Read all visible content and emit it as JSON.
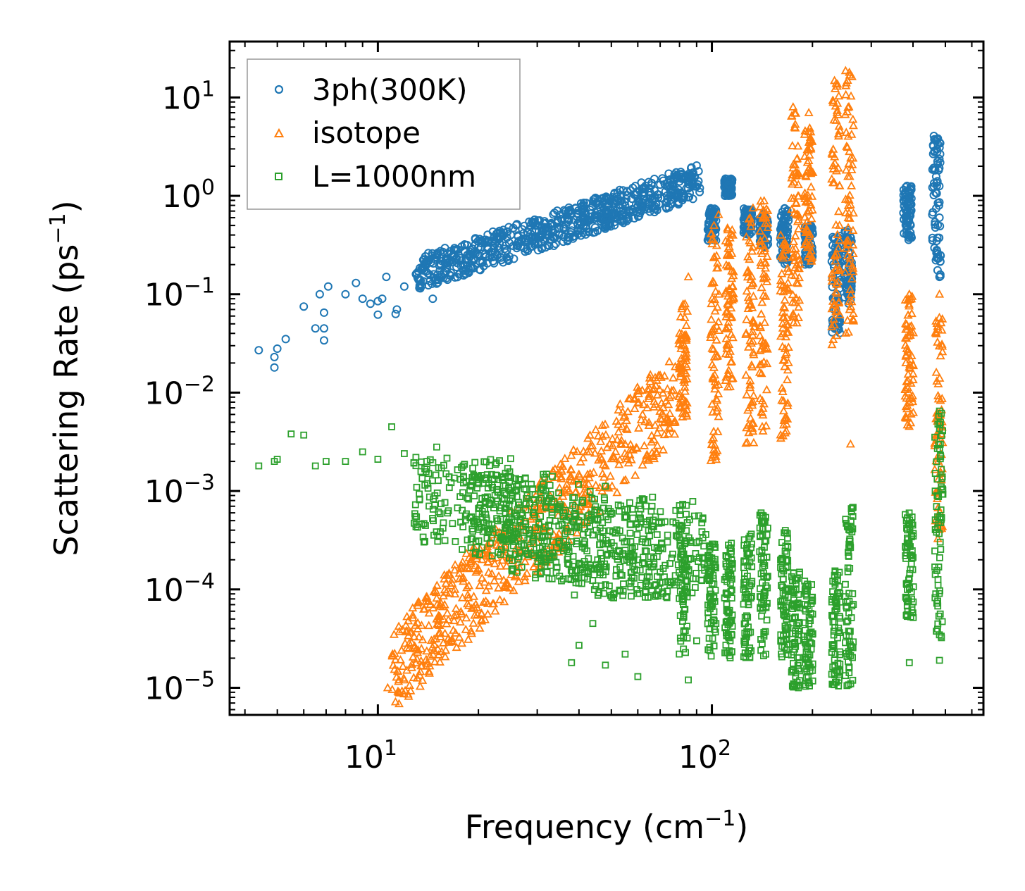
{
  "chart_data": {
    "type": "scatter",
    "x_scale": "log",
    "y_scale": "log",
    "xlabel": "Frequency (cm",
    "xlabel_sup": "−1",
    "xlabel_end": ")",
    "ylabel": "Scattering Rate (ps",
    "ylabel_sup": "−1",
    "ylabel_end": ")",
    "xlim": [
      3.6,
      650
    ],
    "ylim": [
      5.3e-06,
      37
    ],
    "x_ticks": [
      {
        "value": 10,
        "base": "10",
        "exp": "1"
      },
      {
        "value": 100,
        "base": "10",
        "exp": "2"
      }
    ],
    "y_ticks": [
      {
        "value": 1e-05,
        "base": "10",
        "exp": "−5"
      },
      {
        "value": 0.0001,
        "base": "10",
        "exp": "−4"
      },
      {
        "value": 0.001,
        "base": "10",
        "exp": "−3"
      },
      {
        "value": 0.01,
        "base": "10",
        "exp": "−2"
      },
      {
        "value": 0.1,
        "base": "10",
        "exp": "−1"
      },
      {
        "value": 1,
        "base": "10",
        "exp": "0"
      },
      {
        "value": 10,
        "base": "10",
        "exp": "1"
      }
    ],
    "legend_position": "top-left",
    "series": [
      {
        "name": "3ph(300K)",
        "marker": "circle",
        "color": "#1f77b4",
        "points": [
          [
            4.4,
            0.027
          ],
          [
            4.9,
            0.018
          ],
          [
            4.9,
            0.023
          ],
          [
            5.0,
            0.028
          ],
          [
            5.3,
            0.035
          ],
          [
            6.0,
            0.075
          ],
          [
            6.5,
            0.045
          ],
          [
            6.7,
            0.1
          ],
          [
            6.9,
            0.065
          ],
          [
            6.9,
            0.045
          ],
          [
            6.9,
            0.034
          ],
          [
            7.1,
            0.12
          ],
          [
            8.0,
            0.1
          ],
          [
            8.6,
            0.13
          ],
          [
            9.0,
            0.09
          ],
          [
            9.5,
            0.08
          ],
          [
            10.0,
            0.085
          ],
          [
            10.0,
            0.062
          ],
          [
            10.3,
            0.09
          ],
          [
            10.6,
            0.15
          ],
          [
            11.3,
            0.063
          ],
          [
            11.4,
            0.07
          ],
          [
            12.0,
            0.12
          ],
          [
            13.0,
            0.16
          ],
          [
            14.0,
            0.2
          ],
          [
            14.6,
            0.09
          ],
          [
            15.0,
            0.25
          ],
          [
            16.0,
            0.22
          ],
          [
            17.0,
            0.28
          ],
          [
            18.0,
            0.2
          ],
          [
            20.0,
            0.3
          ],
          [
            22.0,
            0.35
          ],
          [
            25.0,
            0.4
          ],
          [
            28.0,
            0.43
          ],
          [
            30.0,
            0.5
          ],
          [
            33.0,
            0.52
          ],
          [
            36.0,
            0.48
          ],
          [
            40.0,
            0.55
          ],
          [
            45.0,
            0.6
          ],
          [
            50.0,
            0.7
          ],
          [
            55.0,
            0.8
          ],
          [
            60.0,
            0.9
          ],
          [
            65.0,
            1.2
          ],
          [
            70.0,
            1.3
          ],
          [
            75.0,
            1.1
          ],
          [
            80.0,
            1.4
          ],
          [
            85.0,
            1.6
          ],
          [
            88.0,
            1.3
          ],
          [
            92.0,
            1.2
          ],
          [
            102.0,
            0.45
          ],
          [
            102.0,
            0.7
          ],
          [
            112.0,
            1.3
          ],
          [
            130.0,
            0.55
          ],
          [
            143.0,
            0.4
          ],
          [
            165.0,
            0.25
          ],
          [
            165.0,
            0.55
          ],
          [
            195.0,
            0.22
          ],
          [
            195.0,
            0.45
          ],
          [
            238.0,
            0.05
          ],
          [
            238.0,
            0.3
          ],
          [
            258.0,
            0.1
          ],
          [
            258.0,
            0.35
          ],
          [
            390.0,
            1.1
          ],
          [
            390.0,
            0.4
          ],
          [
            480.0,
            0.6
          ],
          [
            480.0,
            3.5
          ],
          [
            480.0,
            0.15
          ]
        ],
        "bands": [
          [
            100,
            0.35,
            0.8
          ],
          [
            112,
            1.0,
            1.5
          ],
          [
            128,
            0.4,
            0.75
          ],
          [
            143,
            0.3,
            0.65
          ],
          [
            165,
            0.2,
            0.75
          ],
          [
            195,
            0.2,
            0.5
          ],
          [
            235,
            0.04,
            0.4
          ],
          [
            255,
            0.08,
            0.45
          ],
          [
            385,
            0.35,
            1.3
          ],
          [
            470,
            0.15,
            4.2
          ]
        ]
      },
      {
        "name": "isotope",
        "marker": "triangle",
        "color": "#ff7f0e",
        "points": [
          [
            10.7,
            1e-05
          ],
          [
            12.0,
            1.2e-05
          ],
          [
            13.5,
            2.5e-05
          ],
          [
            15.0,
            5e-05
          ],
          [
            17.0,
            0.0001
          ],
          [
            19.0,
            0.0002
          ],
          [
            21.0,
            0.00025
          ],
          [
            24.0,
            0.0004
          ],
          [
            27.0,
            0.0006
          ],
          [
            30.0,
            0.0007
          ],
          [
            35.0,
            0.0008
          ],
          [
            42.0,
            0.0011
          ],
          [
            48.0,
            0.0018
          ],
          [
            55.0,
            0.003
          ],
          [
            62.0,
            0.006
          ],
          [
            70.0,
            0.015
          ],
          [
            80.0,
            0.04
          ],
          [
            85.0,
            0.15
          ],
          [
            100.0,
            0.003
          ],
          [
            105.0,
            0.1
          ],
          [
            115.0,
            0.45
          ],
          [
            145.0,
            0.6
          ],
          [
            260.0,
            0.003
          ],
          [
            175.0,
            8.0
          ],
          [
            195.0,
            7.0
          ],
          [
            237.0,
            13.0
          ],
          [
            258.0,
            18.0
          ],
          [
            390.0,
            0.1
          ],
          [
            480.0,
            0.1
          ],
          [
            475.0,
            0.0005
          ],
          [
            480.0,
            0.006
          ]
        ],
        "bands": [
          [
            82,
            0.005,
            0.08
          ],
          [
            102,
            0.002,
            0.7
          ],
          [
            113,
            0.01,
            0.5
          ],
          [
            130,
            0.003,
            0.8
          ],
          [
            143,
            0.004,
            0.9
          ],
          [
            165,
            0.003,
            0.4
          ],
          [
            178,
            0.05,
            7.0
          ],
          [
            195,
            0.2,
            5.0
          ],
          [
            235,
            0.03,
            15.0
          ],
          [
            258,
            0.04,
            19.0
          ],
          [
            390,
            0.004,
            0.1
          ],
          [
            478,
            0.0003,
            0.06
          ]
        ]
      },
      {
        "name": "L=1000nm",
        "marker": "square",
        "color": "#2ca02c",
        "points": [
          [
            4.4,
            0.0018
          ],
          [
            4.9,
            0.002
          ],
          [
            5.0,
            0.0021
          ],
          [
            5.5,
            0.0038
          ],
          [
            6.0,
            0.0037
          ],
          [
            6.5,
            0.0018
          ],
          [
            7.0,
            0.002
          ],
          [
            8.0,
            0.002
          ],
          [
            9.0,
            0.0025
          ],
          [
            10.0,
            0.0021
          ],
          [
            11.0,
            0.0045
          ],
          [
            12.0,
            0.0024
          ],
          [
            13.0,
            0.0022
          ],
          [
            14.0,
            0.002
          ],
          [
            15.0,
            0.0028
          ],
          [
            16.0,
            0.0015
          ],
          [
            18.0,
            0.0018
          ],
          [
            20.0,
            0.0014
          ],
          [
            22.0,
            0.0013
          ],
          [
            25.0,
            0.0011
          ],
          [
            28.0,
            0.0009
          ],
          [
            32.0,
            0.0008
          ],
          [
            36.0,
            0.0006
          ],
          [
            40.0,
            0.0005
          ],
          [
            45.0,
            0.0004
          ],
          [
            50.0,
            0.0003
          ],
          [
            55.0,
            0.00025
          ],
          [
            60.0,
            0.0002
          ],
          [
            65.0,
            0.00018
          ],
          [
            70.0,
            0.00015
          ],
          [
            75.0,
            0.00012
          ],
          [
            40.0,
            2.7e-05
          ],
          [
            44.0,
            4.5e-05
          ],
          [
            48.0,
            1.7e-05
          ],
          [
            55.0,
            2.2e-05
          ],
          [
            60.0,
            1.3e-05
          ],
          [
            38.0,
            1.8e-05
          ],
          [
            85.0,
            1.2e-05
          ],
          [
            90.0,
            3e-05
          ],
          [
            145.0,
            2.2e-05
          ],
          [
            178.0,
            1.3e-05
          ],
          [
            200.0,
            1.5e-05
          ],
          [
            240.0,
            1.2e-05
          ],
          [
            390.0,
            1.8e-05
          ],
          [
            480.0,
            1.9e-05
          ],
          [
            480.0,
            0.0065
          ]
        ],
        "bands": [
          [
            82,
            2e-05,
            0.0005
          ],
          [
            100,
            2e-05,
            0.0003
          ],
          [
            112,
            2e-05,
            0.0003
          ],
          [
            128,
            2e-05,
            0.0004
          ],
          [
            143,
            2e-05,
            0.0006
          ],
          [
            165,
            2e-05,
            0.0004
          ],
          [
            178,
            1e-05,
            0.00015
          ],
          [
            195,
            1e-05,
            0.00013
          ],
          [
            235,
            1e-05,
            0.00016
          ],
          [
            258,
            1e-05,
            0.0007
          ],
          [
            390,
            5e-05,
            0.0006
          ],
          [
            478,
            3e-05,
            0.0065
          ]
        ],
        "cloud": [
          [
            18,
            0.0003,
            0.0022
          ],
          [
            25,
            0.0002,
            0.0015
          ],
          [
            35,
            0.00012,
            0.0012
          ],
          [
            50,
            8e-05,
            0.0009
          ],
          [
            70,
            8e-05,
            0.0008
          ]
        ]
      }
    ]
  }
}
